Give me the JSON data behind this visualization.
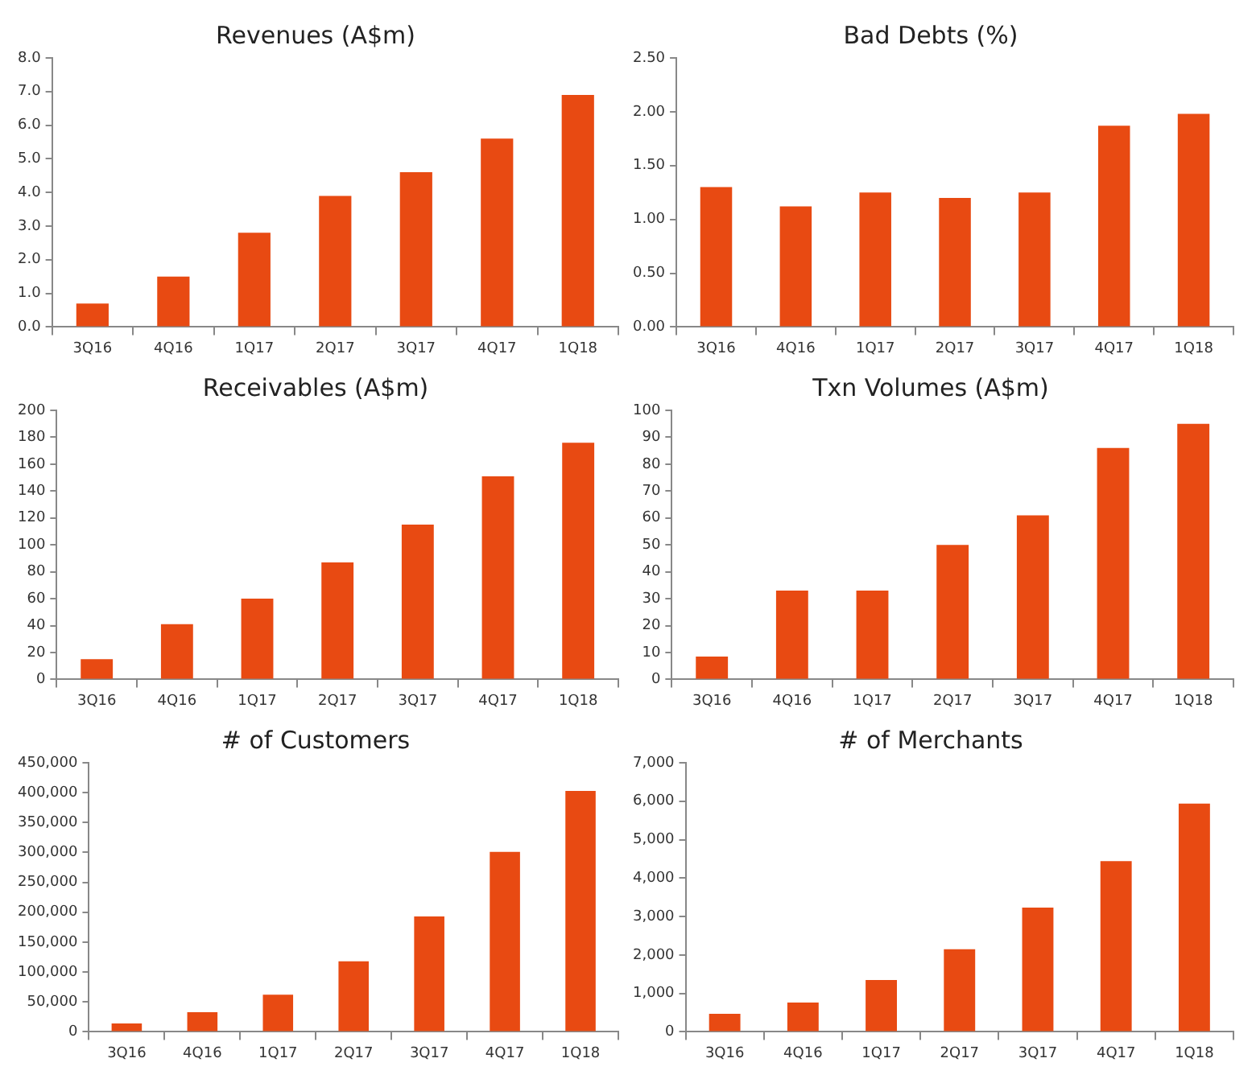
{
  "chart_data": [
    {
      "type": "bar",
      "title": "Revenues (A$m)",
      "categories": [
        "3Q16",
        "4Q16",
        "1Q17",
        "2Q17",
        "3Q17",
        "4Q17",
        "1Q18"
      ],
      "values": [
        0.7,
        1.5,
        2.8,
        3.9,
        4.6,
        5.6,
        6.9
      ],
      "color": "#e84a12",
      "ylim": [
        0,
        8
      ],
      "yticks": [
        {
          "value": 0,
          "label": "0.0"
        },
        {
          "value": 1,
          "label": "1.0"
        },
        {
          "value": 2,
          "label": "2.0"
        },
        {
          "value": 3,
          "label": "3.0"
        },
        {
          "value": 4,
          "label": "4.0"
        },
        {
          "value": 5,
          "label": "5.0"
        },
        {
          "value": 6,
          "label": "6.0"
        },
        {
          "value": 7,
          "label": "7.0"
        },
        {
          "value": 8,
          "label": "8.0"
        }
      ]
    },
    {
      "type": "bar",
      "title": "Bad Debts (%)",
      "categories": [
        "3Q16",
        "4Q16",
        "1Q17",
        "2Q17",
        "3Q17",
        "4Q17",
        "1Q18"
      ],
      "values": [
        1.3,
        1.12,
        1.25,
        1.2,
        1.25,
        1.87,
        1.98
      ],
      "color": "#e84a12",
      "ylim": [
        0,
        2.5
      ],
      "yticks": [
        {
          "value": 0,
          "label": "0.00"
        },
        {
          "value": 0.5,
          "label": "0.50"
        },
        {
          "value": 1,
          "label": "1.00"
        },
        {
          "value": 1.5,
          "label": "1.50"
        },
        {
          "value": 2,
          "label": "2.00"
        },
        {
          "value": 2.5,
          "label": "2.50"
        }
      ]
    },
    {
      "type": "bar",
      "title": "Receivables (A$m)",
      "categories": [
        "3Q16",
        "4Q16",
        "1Q17",
        "2Q17",
        "3Q17",
        "4Q17",
        "1Q18"
      ],
      "values": [
        15,
        41,
        60,
        87,
        115,
        151,
        176
      ],
      "color": "#e84a12",
      "ylim": [
        0,
        200
      ],
      "yticks": [
        0,
        20,
        40,
        60,
        80,
        100,
        120,
        140,
        160,
        180,
        200
      ]
    },
    {
      "type": "bar",
      "title": "Txn Volumes (A$m)",
      "categories": [
        "3Q16",
        "4Q16",
        "1Q17",
        "2Q17",
        "3Q17",
        "4Q17",
        "1Q18"
      ],
      "values": [
        8.5,
        33,
        33,
        50,
        61,
        86,
        95
      ],
      "color": "#e84a12",
      "ylim": [
        0,
        100
      ],
      "yticks": [
        0,
        10,
        20,
        30,
        40,
        50,
        60,
        70,
        80,
        90,
        100
      ]
    },
    {
      "type": "bar",
      "title": "# of Customers",
      "categories": [
        "3Q16",
        "4Q16",
        "1Q17",
        "2Q17",
        "3Q17",
        "4Q17",
        "1Q18"
      ],
      "values": [
        14000,
        33000,
        62000,
        118000,
        193000,
        301000,
        403000
      ],
      "color": "#e84a12",
      "ylim": [
        0,
        450000
      ],
      "yticks": [
        0,
        {
          "value": 50000,
          "label": "50,000"
        },
        {
          "value": 100000,
          "label": "100,000"
        },
        {
          "value": 150000,
          "label": "150,000"
        },
        {
          "value": 200000,
          "label": "200,000"
        },
        {
          "value": 250000,
          "label": "250,000"
        },
        {
          "value": 300000,
          "label": "300,000"
        },
        {
          "value": 350000,
          "label": "350,000"
        },
        {
          "value": 400000,
          "label": "400,000"
        },
        {
          "value": 450000,
          "label": "450,000"
        }
      ]
    },
    {
      "type": "bar",
      "title": "# of Merchants",
      "categories": [
        "3Q16",
        "4Q16",
        "1Q17",
        "2Q17",
        "3Q17",
        "4Q17",
        "1Q18"
      ],
      "values": [
        470,
        760,
        1350,
        2150,
        3230,
        4440,
        5940
      ],
      "color": "#e84a12",
      "ylim": [
        0,
        7000
      ],
      "yticks": [
        0,
        {
          "value": 1000,
          "label": "1,000"
        },
        {
          "value": 2000,
          "label": "2,000"
        },
        {
          "value": 3000,
          "label": "3,000"
        },
        {
          "value": 4000,
          "label": "4,000"
        },
        {
          "value": 5000,
          "label": "5,000"
        },
        {
          "value": 6000,
          "label": "6,000"
        },
        {
          "value": 7000,
          "label": "7,000"
        }
      ]
    }
  ]
}
